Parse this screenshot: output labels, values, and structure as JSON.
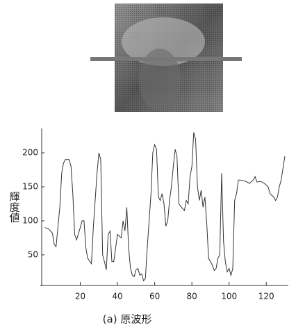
{
  "chart_data": {
    "type": "line",
    "y_label": "輝度値",
    "caption": "(a) 原波形",
    "x": [
      1,
      3,
      5,
      6,
      7,
      9,
      10,
      11,
      12,
      14,
      15,
      16,
      17,
      18,
      20,
      21,
      22,
      23,
      24,
      26,
      27,
      29,
      30,
      31,
      32,
      33,
      34,
      35,
      36,
      37,
      38,
      40,
      42,
      43,
      44,
      45,
      46,
      47,
      48,
      49,
      50,
      51,
      52,
      53,
      54,
      55,
      56,
      58,
      59,
      60,
      61,
      62,
      63,
      64,
      65,
      66,
      67,
      68,
      69,
      70,
      71,
      72,
      73,
      75,
      76,
      77,
      78,
      79,
      80,
      81,
      82,
      83,
      84,
      85,
      86,
      87,
      88,
      89,
      91,
      92,
      93,
      94,
      95,
      96,
      97,
      98,
      99,
      100,
      101,
      102,
      103,
      104,
      105,
      106,
      109,
      111,
      113,
      114,
      115,
      117,
      119,
      121,
      122,
      124,
      125,
      126,
      127,
      128,
      130
    ],
    "values": [
      90,
      88,
      82,
      65,
      62,
      120,
      170,
      185,
      190,
      190,
      180,
      140,
      80,
      72,
      90,
      100,
      100,
      60,
      45,
      37,
      90,
      170,
      200,
      190,
      50,
      40,
      28,
      80,
      85,
      40,
      40,
      80,
      75,
      100,
      85,
      120,
      60,
      30,
      20,
      18,
      28,
      30,
      20,
      22,
      12,
      15,
      60,
      140,
      200,
      212,
      205,
      135,
      130,
      140,
      125,
      92,
      100,
      130,
      150,
      180,
      205,
      195,
      125,
      118,
      115,
      130,
      125,
      165,
      180,
      230,
      220,
      150,
      130,
      145,
      120,
      135,
      95,
      45,
      35,
      27,
      30,
      45,
      50,
      170,
      70,
      40,
      25,
      30,
      20,
      30,
      130,
      140,
      160,
      160,
      158,
      155,
      160,
      165,
      157,
      158,
      155,
      150,
      140,
      135,
      130,
      135,
      150,
      160,
      195
    ],
    "color": "#333333",
    "xlim": [
      0,
      130
    ],
    "xticks": [
      20,
      40,
      60,
      80,
      100,
      120
    ],
    "ylim": [
      5,
      230
    ],
    "yticks": [
      50,
      100,
      150,
      200
    ]
  }
}
